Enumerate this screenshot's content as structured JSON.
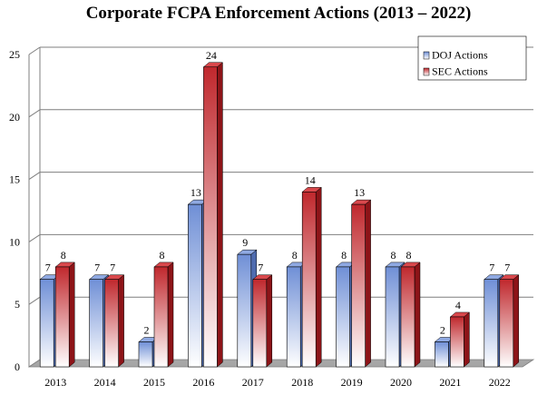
{
  "chart_data": {
    "type": "bar",
    "title": "Corporate  FCPA Enforcement Actions (2013 – 2022)",
    "categories": [
      "2013",
      "2014",
      "2015",
      "2016",
      "2017",
      "2018",
      "2019",
      "2020",
      "2021",
      "2022"
    ],
    "series": [
      {
        "name": "DOJ Actions",
        "values": [
          7,
          7,
          2,
          13,
          9,
          8,
          8,
          8,
          2,
          7
        ],
        "color": "#6f8fd6"
      },
      {
        "name": "SEC Actions",
        "values": [
          8,
          7,
          8,
          24,
          7,
          14,
          13,
          8,
          4,
          7
        ],
        "color": "#c0282d"
      }
    ],
    "ylim": [
      0,
      25
    ],
    "yticks": [
      "0",
      "5",
      "10",
      "15",
      "20",
      "25"
    ],
    "grid": true,
    "legend": "top-right",
    "style": "3d"
  }
}
